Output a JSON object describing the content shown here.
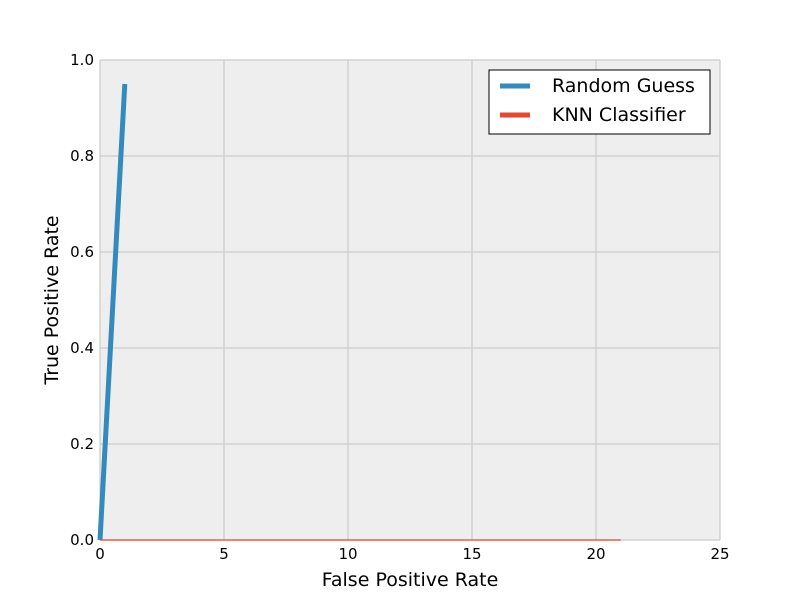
{
  "chart_data": {
    "type": "line",
    "xlabel": "False Positive Rate",
    "ylabel": "True Positive Rate",
    "xlim": [
      0,
      25
    ],
    "ylim": [
      0,
      1
    ],
    "x_ticks": [
      "0",
      "5",
      "10",
      "15",
      "20",
      "25"
    ],
    "y_ticks": [
      "0.0",
      "0.2",
      "0.4",
      "0.6",
      "0.8",
      "1.0"
    ],
    "grid": true,
    "legend_position": "top-right",
    "series": [
      {
        "name": "Random Guess",
        "color": "#348abd",
        "x": [
          0,
          1
        ],
        "y": [
          0,
          0.95
        ]
      },
      {
        "name": "KNN Classifier",
        "color": "#e24a33",
        "x": [
          0,
          21
        ],
        "y": [
          0,
          0
        ]
      }
    ]
  }
}
